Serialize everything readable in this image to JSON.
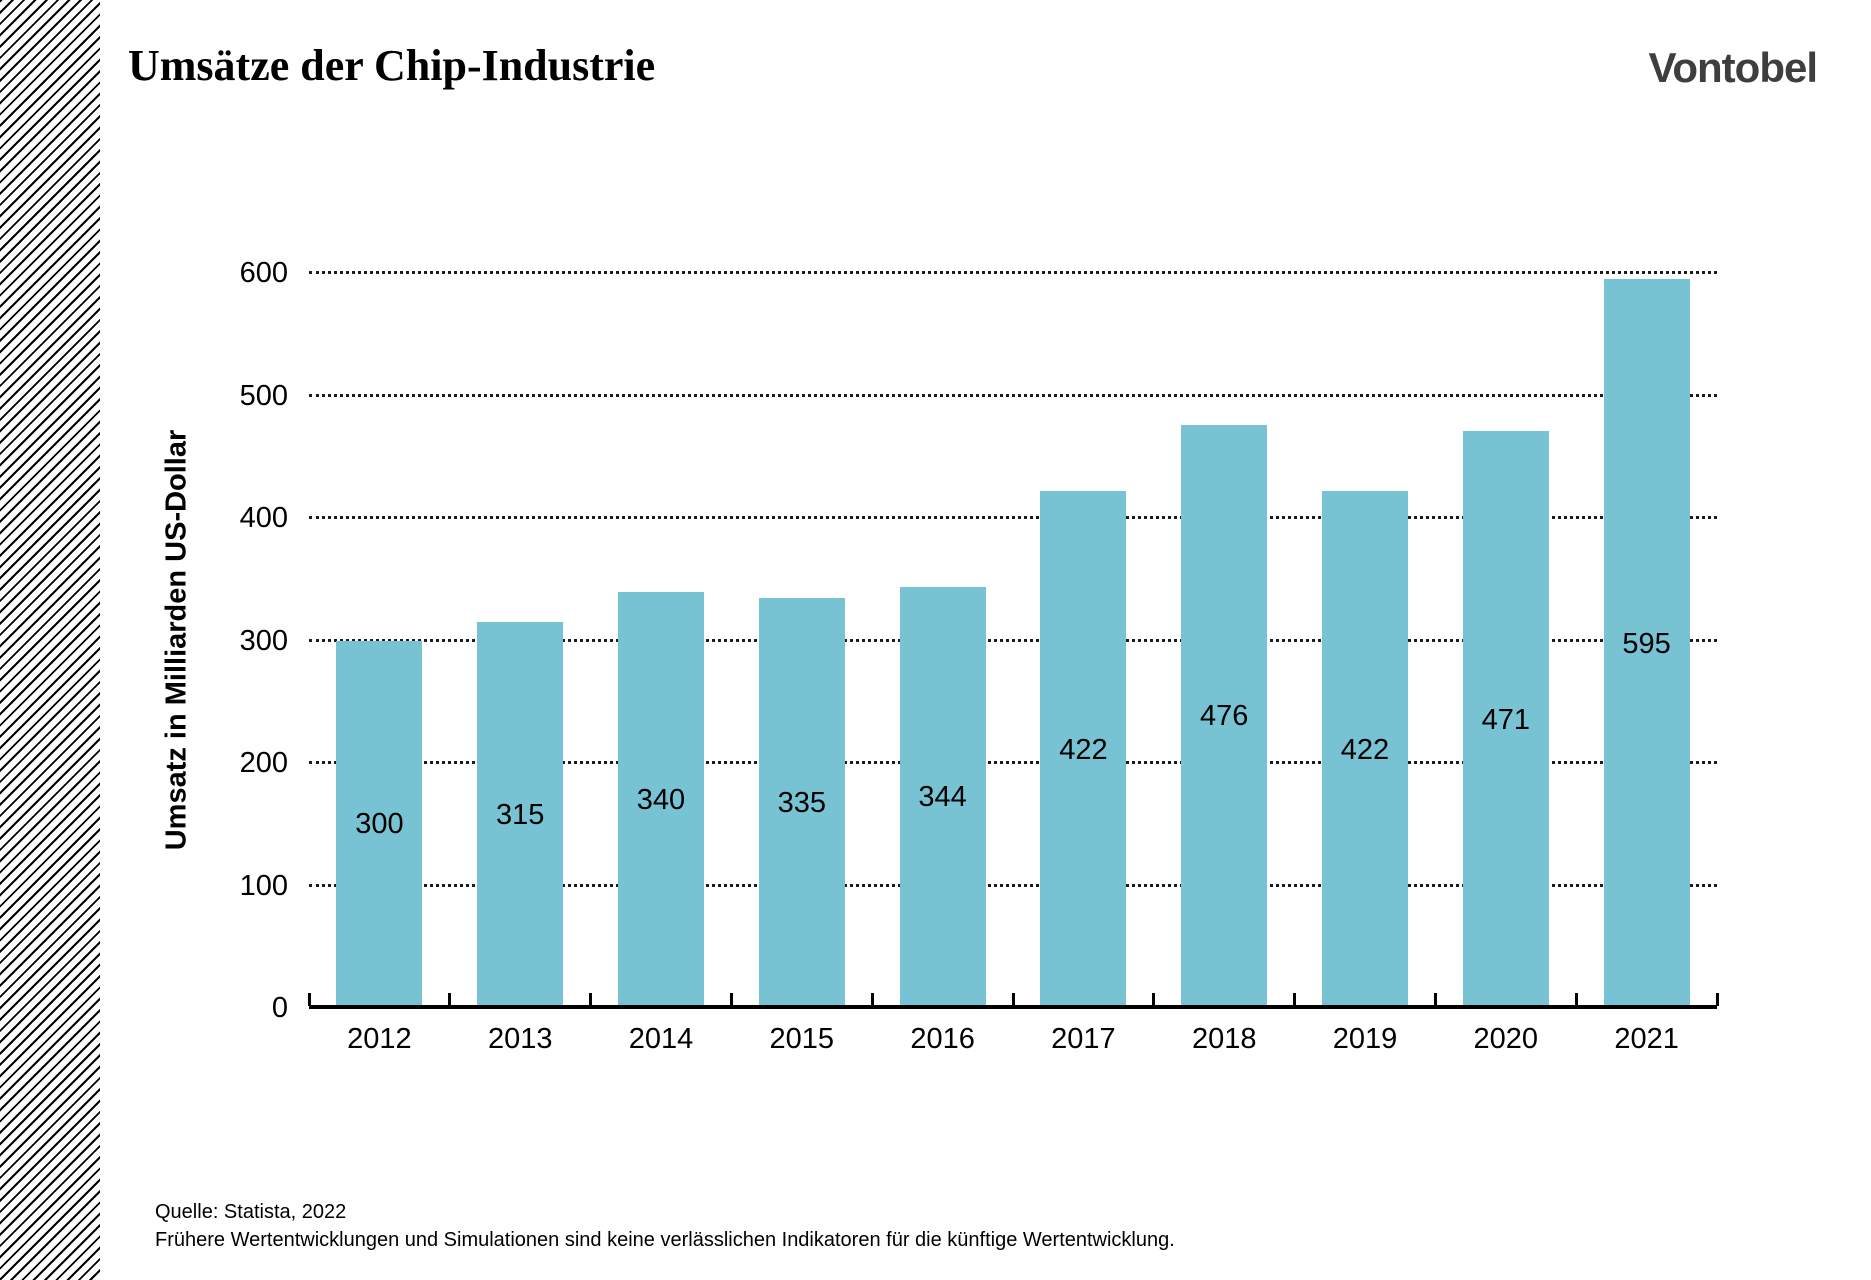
{
  "header": {
    "title": "Umsätze der Chip-Industrie",
    "logo": "Vontobel"
  },
  "chart_data": {
    "type": "bar",
    "title": "Umsätze der Chip-Industrie",
    "categories": [
      "2012",
      "2013",
      "2014",
      "2015",
      "2016",
      "2017",
      "2018",
      "2019",
      "2020",
      "2021"
    ],
    "values": [
      300,
      315,
      340,
      335,
      344,
      422,
      476,
      422,
      471,
      595
    ],
    "xlabel": "",
    "ylabel": "Umsatz in Milliarden US-Dollar",
    "ylim": [
      0,
      600
    ],
    "yticks": [
      0,
      100,
      200,
      300,
      400,
      500,
      600
    ],
    "grid": "horizontal dotted",
    "legend": "none",
    "bar_color": "#77c3d3",
    "value_label_position": "centered inside bars"
  },
  "footer": {
    "source": "Quelle: Statista, 2022",
    "disclaimer": "Frühere Wertentwicklungen und Simulationen sind keine verlässlichen Indikatoren für die künftige Wertentwicklung."
  }
}
